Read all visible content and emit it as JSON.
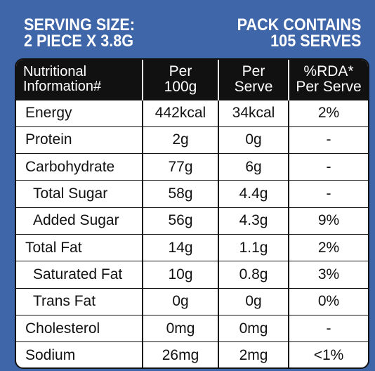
{
  "header": {
    "serving_line1": "SERVING SIZE:",
    "serving_line2": "2 PIECE X 3.8g",
    "pack_line1": "PACK CONTAINS",
    "pack_line2": "105 SERVES"
  },
  "table": {
    "headers": {
      "col1_line1": "Nutritional",
      "col1_line2": "Information#",
      "col2_line1": "Per",
      "col2_line2": "100g",
      "col3_line1": "Per",
      "col3_line2": "Serve",
      "col4_line1": "%RDA*",
      "col4_line2": "Per Serve"
    },
    "rows": [
      {
        "name": "Energy",
        "per100": "442kcal",
        "perserve": "34kcal",
        "rda": "2%"
      },
      {
        "name": "Protein",
        "per100": "2g",
        "perserve": "0g",
        "rda": "-"
      },
      {
        "name": "Carbohydrate",
        "per100": "77g",
        "perserve": "6g",
        "rda": "-"
      },
      {
        "name": "Total Sugar",
        "per100": "58g",
        "perserve": "4.4g",
        "rda": "-"
      },
      {
        "name": "Added Sugar",
        "per100": "56g",
        "perserve": "4.3g",
        "rda": "9%"
      },
      {
        "name": "Total Fat",
        "per100": "14g",
        "perserve": "1.1g",
        "rda": "2%"
      },
      {
        "name": "Saturated Fat",
        "per100": "10g",
        "perserve": "0.8g",
        "rda": "3%"
      },
      {
        "name": "Trans Fat",
        "per100": "0g",
        "perserve": "0g",
        "rda": "0%"
      },
      {
        "name": "Cholesterol",
        "per100": "0mg",
        "perserve": "0mg",
        "rda": "-"
      },
      {
        "name": "Sodium",
        "per100": "26mg",
        "perserve": "2mg",
        "rda": "<1%"
      }
    ]
  },
  "colors": {
    "background": "#3f66a8",
    "header_row": "#111111",
    "text_light": "#ffffff",
    "text_dark": "#111111"
  }
}
